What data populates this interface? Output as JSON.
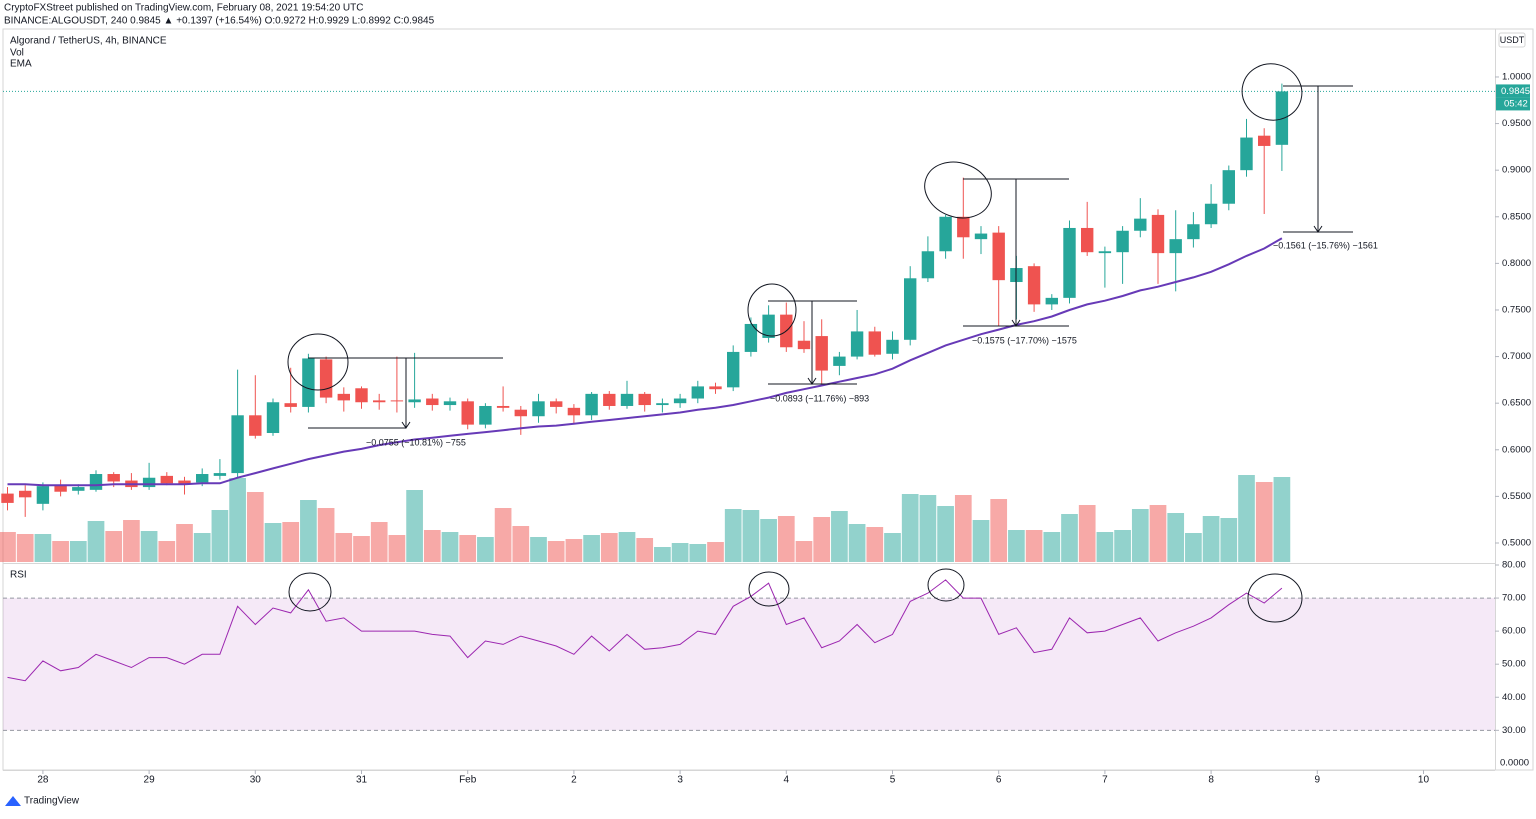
{
  "header": {
    "publisher": "CryptoFXStreet published on TradingView.com, February 08, 2021 19:54:20 UTC",
    "symbol_line": "BINANCE:ALGOUSDT, 240  0.9845  ▲ +0.1397 (+16.54%)  O:0.9272  H:0.9929  L:0.8992  C:0.9845"
  },
  "footer": {
    "brand": "TradingView"
  },
  "chart_data": {
    "type": "candlestick",
    "title": "Algorand / TetherUS, 4h, BINANCE",
    "indicator_labels": [
      "Vol",
      "EMA"
    ],
    "rsi_label": "RSI",
    "currency": "USDT",
    "last_price": 0.9845,
    "countdown": "05:42",
    "volume_axis_label": "0.0000",
    "annotations": [
      "−0.0755 (−10.81%) −755",
      "−0.0893 (−11.76%) −893",
      "−0.1575 (−17.70%) −1575",
      "−0.1561 (−15.76%) −1561"
    ],
    "up_color": "#26a69a",
    "down_color": "#ef5350",
    "volume_up_color": "rgba(38,166,154,0.5)",
    "volume_down_color": "rgba(239,83,80,0.5)",
    "ema_color": "#673ab7",
    "rsi_color": "#9c27b0",
    "rsi_band_color": "rgba(156,39,176,0.1)",
    "x": [
      0,
      1,
      2,
      3,
      4,
      5,
      6,
      7,
      8,
      9,
      10,
      11,
      12,
      13,
      14,
      15,
      16,
      17,
      18,
      19,
      20,
      21,
      22,
      23,
      24,
      25,
      26,
      27,
      28,
      29,
      30,
      31,
      32,
      33,
      34,
      35,
      36,
      37,
      38,
      39,
      40,
      41,
      42,
      43,
      44,
      45,
      46,
      47,
      48,
      49,
      50,
      51,
      52,
      53,
      54,
      55,
      56,
      57,
      58,
      59,
      60,
      61,
      62,
      63,
      64,
      65,
      66,
      67,
      68,
      69,
      70,
      71,
      72
    ],
    "open": [
      0.553,
      0.556,
      0.542,
      0.562,
      0.556,
      0.557,
      0.574,
      0.567,
      0.56,
      0.572,
      0.567,
      0.565,
      0.572,
      0.575,
      0.637,
      0.618,
      0.65,
      0.646,
      0.697,
      0.66,
      0.666,
      0.653,
      0.653,
      0.651,
      0.655,
      0.648,
      0.652,
      0.627,
      0.647,
      0.643,
      0.636,
      0.652,
      0.645,
      0.637,
      0.66,
      0.647,
      0.66,
      0.648,
      0.65,
      0.655,
      0.668,
      0.667,
      0.705,
      0.72,
      0.745,
      0.717,
      0.722,
      0.69,
      0.7,
      0.727,
      0.703,
      0.718,
      0.784,
      0.813,
      0.85,
      0.826,
      0.833,
      0.78,
      0.797,
      0.756,
      0.763,
      0.838,
      0.811,
      0.812,
      0.835,
      0.852,
      0.811,
      0.826,
      0.842,
      0.864,
      0.9,
      0.937,
      0.9272
    ],
    "high": [
      0.56,
      0.562,
      0.565,
      0.568,
      0.563,
      0.578,
      0.576,
      0.575,
      0.586,
      0.576,
      0.571,
      0.58,
      0.59,
      0.686,
      0.68,
      0.655,
      0.688,
      0.703,
      0.7,
      0.667,
      0.668,
      0.66,
      0.7,
      0.704,
      0.66,
      0.656,
      0.655,
      0.65,
      0.668,
      0.647,
      0.66,
      0.655,
      0.649,
      0.662,
      0.663,
      0.674,
      0.662,
      0.655,
      0.66,
      0.674,
      0.672,
      0.712,
      0.742,
      0.755,
      0.758,
      0.738,
      0.74,
      0.705,
      0.75,
      0.732,
      0.727,
      0.797,
      0.829,
      0.852,
      0.892,
      0.84,
      0.84,
      0.808,
      0.8,
      0.767,
      0.846,
      0.866,
      0.818,
      0.84,
      0.87,
      0.858,
      0.857,
      0.855,
      0.885,
      0.905,
      0.955,
      0.945,
      0.9929
    ],
    "low": [
      0.535,
      0.528,
      0.535,
      0.55,
      0.552,
      0.555,
      0.56,
      0.557,
      0.557,
      0.562,
      0.552,
      0.561,
      0.568,
      0.57,
      0.612,
      0.615,
      0.64,
      0.64,
      0.65,
      0.641,
      0.644,
      0.643,
      0.64,
      0.645,
      0.642,
      0.642,
      0.622,
      0.623,
      0.641,
      0.616,
      0.629,
      0.639,
      0.628,
      0.632,
      0.643,
      0.644,
      0.641,
      0.64,
      0.645,
      0.65,
      0.66,
      0.663,
      0.7,
      0.715,
      0.705,
      0.704,
      0.671,
      0.68,
      0.697,
      0.7,
      0.697,
      0.712,
      0.78,
      0.805,
      0.805,
      0.81,
      0.733,
      0.74,
      0.748,
      0.75,
      0.757,
      0.808,
      0.774,
      0.778,
      0.828,
      0.778,
      0.77,
      0.817,
      0.838,
      0.857,
      0.893,
      0.853,
      0.8992
    ],
    "close": [
      0.543,
      0.549,
      0.561,
      0.555,
      0.56,
      0.574,
      0.566,
      0.56,
      0.57,
      0.564,
      0.563,
      0.574,
      0.575,
      0.637,
      0.615,
      0.651,
      0.646,
      0.698,
      0.656,
      0.653,
      0.651,
      0.651,
      0.652,
      0.654,
      0.648,
      0.652,
      0.627,
      0.647,
      0.645,
      0.636,
      0.652,
      0.646,
      0.637,
      0.66,
      0.647,
      0.66,
      0.648,
      0.65,
      0.655,
      0.668,
      0.665,
      0.705,
      0.735,
      0.745,
      0.71,
      0.708,
      0.685,
      0.7,
      0.727,
      0.702,
      0.718,
      0.784,
      0.813,
      0.85,
      0.828,
      0.832,
      0.782,
      0.795,
      0.756,
      0.763,
      0.838,
      0.812,
      0.813,
      0.835,
      0.848,
      0.811,
      0.826,
      0.842,
      0.864,
      0.9,
      0.935,
      0.926,
      0.9845
    ],
    "volume": [
      30,
      28,
      28,
      21,
      21,
      41,
      31,
      42,
      31,
      21,
      38,
      29,
      52,
      84,
      70,
      39,
      40,
      62,
      54,
      29,
      26,
      40,
      27,
      72,
      32,
      30,
      27,
      25,
      54,
      36,
      25,
      21,
      23,
      27,
      29,
      30,
      24,
      15,
      19,
      18,
      20,
      53,
      52,
      43,
      46,
      21,
      45,
      51,
      38,
      35,
      29,
      68,
      67,
      56,
      67,
      42,
      63,
      32,
      32,
      30,
      48,
      57,
      30,
      32,
      53,
      57,
      49,
      29,
      46,
      44,
      87,
      80,
      85
    ],
    "ema": [
      0.563,
      0.563,
      0.562,
      0.562,
      0.562,
      0.562,
      0.563,
      0.563,
      0.563,
      0.563,
      0.563,
      0.564,
      0.564,
      0.57,
      0.575,
      0.58,
      0.585,
      0.59,
      0.594,
      0.598,
      0.601,
      0.605,
      0.608,
      0.611,
      0.613,
      0.615,
      0.617,
      0.619,
      0.621,
      0.623,
      0.625,
      0.626,
      0.628,
      0.63,
      0.632,
      0.634,
      0.636,
      0.638,
      0.64,
      0.643,
      0.645,
      0.648,
      0.652,
      0.656,
      0.661,
      0.665,
      0.669,
      0.673,
      0.677,
      0.681,
      0.687,
      0.696,
      0.704,
      0.712,
      0.718,
      0.724,
      0.729,
      0.734,
      0.738,
      0.743,
      0.75,
      0.756,
      0.76,
      0.765,
      0.771,
      0.775,
      0.78,
      0.785,
      0.791,
      0.799,
      0.808,
      0.816,
      0.827
    ],
    "rsi": [
      46,
      45,
      51,
      48,
      49,
      53,
      51,
      49,
      52,
      52,
      50,
      53,
      53,
      67.5,
      62,
      67,
      65.5,
      72.5,
      63,
      64,
      60,
      60,
      60,
      60,
      59,
      58.5,
      52,
      57,
      56,
      58.5,
      57,
      55.5,
      53,
      58.5,
      54,
      59,
      54.5,
      55,
      56,
      60,
      59,
      67.5,
      70.5,
      74.5,
      62,
      64,
      55,
      57,
      62,
      56.5,
      59,
      69,
      71.5,
      75.5,
      70,
      70,
      59,
      61,
      53.5,
      54.5,
      64,
      59.5,
      60,
      62,
      64,
      57,
      59.5,
      61.5,
      64,
      68,
      71.5,
      68.5,
      73
    ],
    "xlim": [
      -0.424,
      84.04
    ],
    "xticks": [
      {
        "value": 2,
        "label": "28"
      },
      {
        "value": 8,
        "label": "29"
      },
      {
        "value": 14,
        "label": "30"
      },
      {
        "value": 20,
        "label": "31"
      },
      {
        "value": 26,
        "label": "Feb"
      },
      {
        "value": 32,
        "label": "2"
      },
      {
        "value": 38,
        "label": "3"
      },
      {
        "value": 44,
        "label": "4"
      },
      {
        "value": 50,
        "label": "5"
      },
      {
        "value": 56,
        "label": "6"
      },
      {
        "value": 62,
        "label": "7"
      },
      {
        "value": 68,
        "label": "8"
      },
      {
        "value": 74,
        "label": "9"
      },
      {
        "value": 80,
        "label": "10"
      }
    ],
    "ylim": [
      0.4796,
      1.0504
    ],
    "yticks": [
      {
        "value": 1.0,
        "label": "1.0000"
      },
      {
        "value": 0.95,
        "label": "0.9500"
      },
      {
        "value": 0.9,
        "label": "0.9000"
      },
      {
        "value": 0.85,
        "label": "0.8500"
      },
      {
        "value": 0.8,
        "label": "0.8000"
      },
      {
        "value": 0.75,
        "label": "0.7500"
      },
      {
        "value": 0.7,
        "label": "0.7000"
      },
      {
        "value": 0.65,
        "label": "0.6500"
      },
      {
        "value": 0.6,
        "label": "0.6000"
      },
      {
        "value": 0.55,
        "label": "0.5500"
      },
      {
        "value": 0.5,
        "label": "0.5000"
      }
    ],
    "rsi_ylim": [
      18,
      80
    ],
    "rsi_yticks": [
      {
        "value": 80,
        "label": "80.00"
      },
      {
        "value": 70,
        "label": "70.00"
      },
      {
        "value": 60,
        "label": "60.00"
      },
      {
        "value": 50,
        "label": "50.00"
      },
      {
        "value": 40,
        "label": "40.00"
      },
      {
        "value": 30,
        "label": "30.00"
      }
    ],
    "rsi_band": [
      30,
      70
    ],
    "grid": false
  }
}
